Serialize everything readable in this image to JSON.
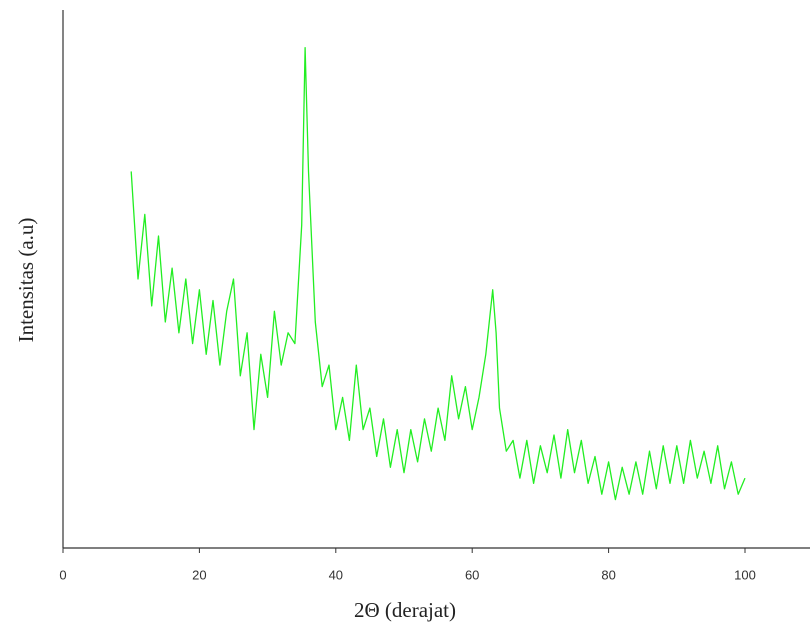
{
  "chart_data": {
    "type": "line",
    "x_label": "2Θ (derajat)",
    "y_label": "Intensitas (a.u)",
    "xlim": [
      0,
      109
    ],
    "ylim": [
      0,
      100
    ],
    "xticks": [
      0,
      20,
      40,
      60,
      80,
      100
    ],
    "series": [
      {
        "color": "#22ee22",
        "x": [
          10,
          11,
          12,
          13,
          14,
          15,
          16,
          17,
          18,
          19,
          20,
          21,
          22,
          23,
          24,
          25,
          26,
          27,
          28,
          29,
          30,
          31,
          32,
          33,
          34,
          35,
          35.5,
          36,
          37,
          38,
          39,
          40,
          41,
          42,
          43,
          44,
          45,
          46,
          47,
          48,
          49,
          50,
          51,
          52,
          53,
          54,
          55,
          56,
          57,
          58,
          59,
          60,
          61,
          62,
          63,
          63.5,
          64,
          65,
          66,
          67,
          68,
          69,
          70,
          71,
          72,
          73,
          74,
          75,
          76,
          77,
          78,
          79,
          80,
          81,
          82,
          83,
          84,
          85,
          86,
          87,
          88,
          89,
          90,
          91,
          92,
          93,
          94,
          95,
          96,
          97,
          98,
          99,
          100
        ],
        "values": [
          70,
          50,
          62,
          45,
          58,
          42,
          52,
          40,
          50,
          38,
          48,
          36,
          46,
          34,
          44,
          50,
          32,
          40,
          22,
          36,
          28,
          44,
          34,
          40,
          38,
          60,
          93,
          70,
          42,
          30,
          34,
          22,
          28,
          20,
          34,
          22,
          26,
          17,
          24,
          15,
          22,
          14,
          22,
          16,
          24,
          18,
          26,
          20,
          32,
          24,
          30,
          22,
          28,
          36,
          48,
          40,
          26,
          18,
          20,
          13,
          20,
          12,
          19,
          14,
          21,
          13,
          22,
          14,
          20,
          12,
          17,
          10,
          16,
          9,
          15,
          10,
          16,
          10,
          18,
          11,
          19,
          12,
          19,
          12,
          20,
          13,
          18,
          12,
          19,
          11,
          16,
          10,
          13
        ]
      }
    ]
  }
}
